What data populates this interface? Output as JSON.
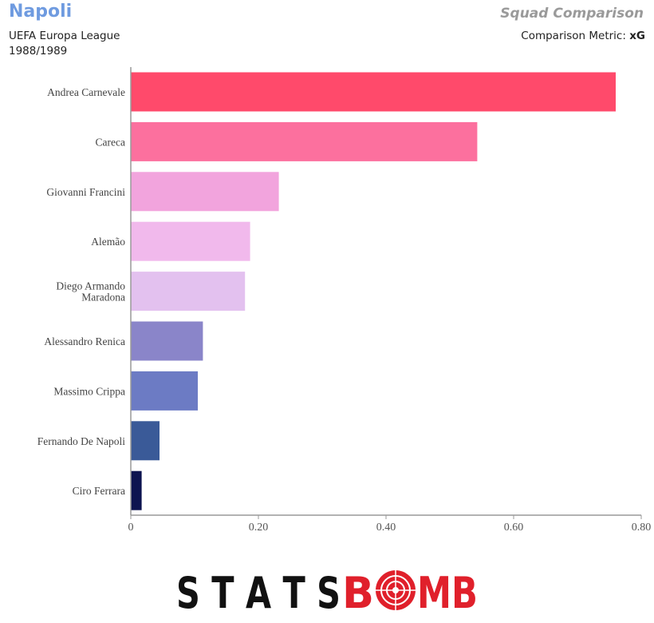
{
  "header": {
    "team": "Napoli",
    "competition": "UEFA Europa League",
    "season": "1988/1989",
    "title": "Squad Comparison",
    "metric_label": "Comparison Metric: ",
    "metric_value": "xG"
  },
  "brand": {
    "logo_text_left": "STATS",
    "logo_text_right": "MB",
    "logo_color_left": "#111111",
    "logo_color_right": "#e0202b"
  },
  "chart_data": {
    "type": "bar",
    "orientation": "horizontal",
    "title": "",
    "xlabel": "",
    "ylabel": "",
    "xlim": [
      0,
      0.8
    ],
    "xticks": [
      0,
      0.2,
      0.4,
      0.6,
      0.8
    ],
    "xtick_labels": [
      "0",
      "0.20",
      "0.40",
      "0.60",
      "0.80"
    ],
    "grid": false,
    "categories": [
      "Andrea Carnevale",
      "Careca",
      "Giovanni Francini",
      "Alemão",
      "Diego Armando Maradona",
      "Alessandro Renica",
      "Massimo Crippa",
      "Fernando De Napoli",
      "Ciro Ferrara"
    ],
    "category_lines": [
      [
        "Andrea Carnevale"
      ],
      [
        "Careca"
      ],
      [
        "Giovanni Francini"
      ],
      [
        "Alemão"
      ],
      [
        "Diego Armando",
        "Maradona"
      ],
      [
        "Alessandro Renica"
      ],
      [
        "Massimo Crippa"
      ],
      [
        "Fernando De Napoli"
      ],
      [
        "Ciro Ferrara"
      ]
    ],
    "values": [
      0.76,
      0.543,
      0.232,
      0.187,
      0.179,
      0.113,
      0.105,
      0.045,
      0.017
    ],
    "colors": [
      "#ff4a6b",
      "#fc709e",
      "#f2a4dd",
      "#f1b9ec",
      "#e3c1ef",
      "#8a85c9",
      "#6c7bc4",
      "#3a5a98",
      "#0d1450"
    ]
  }
}
